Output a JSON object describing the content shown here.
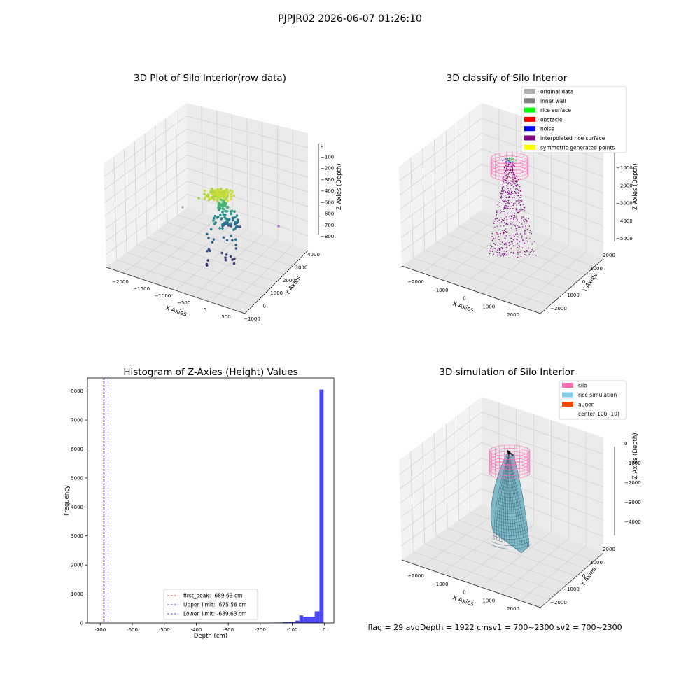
{
  "figure": {
    "suptitle": "PJPJR02 2026-06-07 01:26:10",
    "footer": "flag = 29  avgDepth = 1922 cmsv1 = 700~2300  sv2 = 700~2300"
  },
  "chart_data": [
    {
      "type": "scatter",
      "title": "3D Plot of Silo Interior(row data)",
      "xlabel": "X Axies",
      "ylabel": "Y Axies",
      "zlabel": "Z Axies (Depth)",
      "x_ticks": [
        "−2000",
        "−1500",
        "−1000",
        "−500",
        "0",
        "500"
      ],
      "y_ticks": [
        "−1000",
        "0",
        "1000",
        "2000",
        "3000",
        "4000"
      ],
      "z_ticks": [
        "0",
        "−100",
        "−200",
        "−300",
        "−400",
        "−500",
        "−600",
        "−700",
        "−800"
      ],
      "colormap": "viridis",
      "grid": true
    },
    {
      "type": "scatter",
      "title": "3D classify of Silo Interior",
      "xlabel": "X Axies",
      "ylabel": "Y Axies",
      "zlabel": "Z Axies (Depth)",
      "x_ticks": [
        "−2000",
        "−1000",
        "0",
        "1000",
        "2000"
      ],
      "y_ticks": [
        "−2000",
        "−1000",
        "0",
        "1000",
        "2000"
      ],
      "z_ticks": [
        "−1000",
        "−2000",
        "−3000",
        "−4000",
        "−5000"
      ],
      "legend": [
        {
          "label": "original data",
          "color": "#b0b0b0"
        },
        {
          "label": "inner wall",
          "color": "#808080"
        },
        {
          "label": "rice surface",
          "color": "#00ff00"
        },
        {
          "label": "obstacle",
          "color": "#ff0000"
        },
        {
          "label": "noise",
          "color": "#0000ff"
        },
        {
          "label": "interpolated rice surface",
          "color": "#800080"
        },
        {
          "label": "symmetric generated points",
          "color": "#ffff00"
        }
      ],
      "legend_loc": "upper right",
      "grid": true
    },
    {
      "type": "bar",
      "title": "Histogram of Z-Axies (Height) Values",
      "xlabel": "Depth (cm)",
      "ylabel": "Frequency",
      "xlim": [
        -740,
        30
      ],
      "ylim": [
        0,
        8450
      ],
      "x_ticks": [
        -700,
        -600,
        -500,
        -400,
        -300,
        -200,
        -100,
        0
      ],
      "y_ticks": [
        0,
        1000,
        2000,
        3000,
        4000,
        5000,
        6000,
        7000,
        8000
      ],
      "bars": [
        {
          "x0": -180,
          "x1": -150,
          "value": 8
        },
        {
          "x0": -150,
          "x1": -130,
          "value": 15
        },
        {
          "x0": -130,
          "x1": -110,
          "value": 30
        },
        {
          "x0": -110,
          "x1": -90,
          "value": 45
        },
        {
          "x0": -90,
          "x1": -78,
          "value": 80
        },
        {
          "x0": -78,
          "x1": -66,
          "value": 260
        },
        {
          "x0": -66,
          "x1": -54,
          "value": 215
        },
        {
          "x0": -54,
          "x1": -42,
          "value": 215
        },
        {
          "x0": -42,
          "x1": -30,
          "value": 215
        },
        {
          "x0": -30,
          "x1": -15,
          "value": 400
        },
        {
          "x0": -15,
          "x1": -2,
          "value": 8050
        }
      ],
      "bar_color": "#4a4af0",
      "lines": [
        {
          "x": -689.63,
          "color": "#cc3333",
          "label": "first_peak: -689.63 cm"
        },
        {
          "x": -675.56,
          "color": "#2222cc",
          "label": "Upper_limit: -675.56 cm"
        },
        {
          "x": -689.63,
          "color": "#2222cc",
          "label": "Lower_limit: -689.63 cm"
        }
      ],
      "legend_loc": "lower center",
      "grid": false
    },
    {
      "type": "area",
      "title": "3D simulation of Silo Interior",
      "xlabel": "X Axies",
      "ylabel": "Y Axies",
      "zlabel": "Z Axies (Depth)",
      "x_ticks": [
        "−2000",
        "−1000",
        "0",
        "1000",
        "2000"
      ],
      "y_ticks": [
        "−2000",
        "−1000",
        "0",
        "1000",
        "2000"
      ],
      "z_ticks": [
        "0",
        "−1000",
        "−2000",
        "−3000",
        "−4000"
      ],
      "legend": [
        {
          "label": "silo",
          "color": "#ff69b4"
        },
        {
          "label": "rice simulation",
          "color": "#87ceeb"
        },
        {
          "label": "auger",
          "color": "#ff4500"
        },
        {
          "label": "center(100,-10)",
          "color": ""
        }
      ],
      "legend_loc": "upper right",
      "grid": true
    }
  ]
}
